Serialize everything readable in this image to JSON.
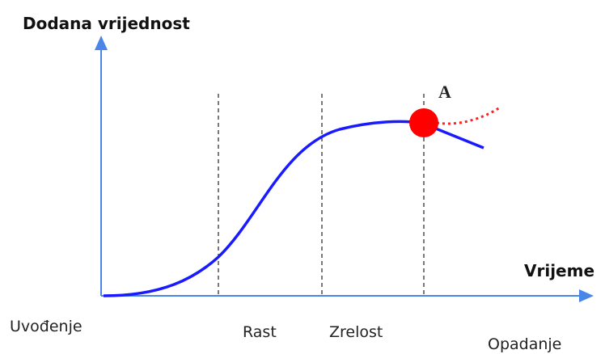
{
  "axes": {
    "y_label": "Dodana vrijednost",
    "x_label": "Vrijeme"
  },
  "point_label": "A",
  "phases": [
    "Uvođenje",
    "Rast",
    "Zrelost",
    "Opadanje"
  ]
}
